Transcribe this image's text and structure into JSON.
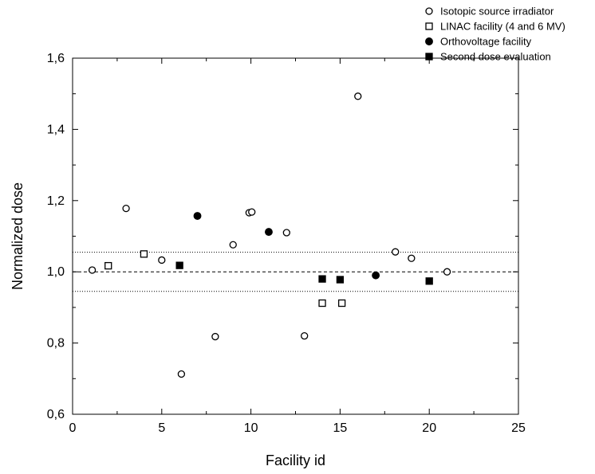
{
  "chart_data": {
    "type": "scatter",
    "title": "",
    "xlabel": "Facility id",
    "ylabel": "Normalized dose",
    "xlim": [
      0,
      25
    ],
    "ylim": [
      0.6,
      1.6
    ],
    "x_ticks": [
      0,
      5,
      10,
      15,
      20,
      25
    ],
    "x_tick_labels": [
      "0",
      "5",
      "10",
      "15",
      "20",
      "25"
    ],
    "y_ticks": [
      0.6,
      0.8,
      1.0,
      1.2,
      1.4,
      1.6
    ],
    "y_tick_labels": [
      "0,6",
      "0,8",
      "1,0",
      "1,2",
      "1,4",
      "1,6"
    ],
    "grid": false,
    "legend_position": "top-right",
    "reference_lines": [
      {
        "y": 1.0,
        "style": "dashed"
      },
      {
        "y": 1.055,
        "style": "dotted"
      },
      {
        "y": 0.945,
        "style": "dotted"
      }
    ],
    "series": [
      {
        "name": "Isotopic source irradiator",
        "marker": "open-circle",
        "points": [
          {
            "x": 1.1,
            "y": 1.005
          },
          {
            "x": 3,
            "y": 1.178
          },
          {
            "x": 5,
            "y": 1.033
          },
          {
            "x": 6.1,
            "y": 0.713
          },
          {
            "x": 8,
            "y": 0.818
          },
          {
            "x": 9,
            "y": 1.076
          },
          {
            "x": 9.9,
            "y": 1.166
          },
          {
            "x": 10.05,
            "y": 1.168
          },
          {
            "x": 12,
            "y": 1.11
          },
          {
            "x": 13,
            "y": 0.82
          },
          {
            "x": 16,
            "y": 1.493
          },
          {
            "x": 18.1,
            "y": 1.056
          },
          {
            "x": 19,
            "y": 1.038
          },
          {
            "x": 21,
            "y": 1.0
          }
        ]
      },
      {
        "name": "LINAC facility (4 and 6 MV)",
        "marker": "open-square",
        "points": [
          {
            "x": 2,
            "y": 1.017
          },
          {
            "x": 4,
            "y": 1.05
          },
          {
            "x": 14,
            "y": 0.912
          },
          {
            "x": 15.1,
            "y": 0.912
          }
        ]
      },
      {
        "name": "Orthovoltage facility",
        "marker": "filled-circle",
        "points": [
          {
            "x": 7,
            "y": 1.157
          },
          {
            "x": 11,
            "y": 1.112
          },
          {
            "x": 17,
            "y": 0.99
          }
        ]
      },
      {
        "name": "Second dose evaluation",
        "marker": "filled-square",
        "points": [
          {
            "x": 6,
            "y": 1.018
          },
          {
            "x": 14,
            "y": 0.98
          },
          {
            "x": 15,
            "y": 0.978
          },
          {
            "x": 20,
            "y": 0.974
          }
        ]
      }
    ]
  }
}
